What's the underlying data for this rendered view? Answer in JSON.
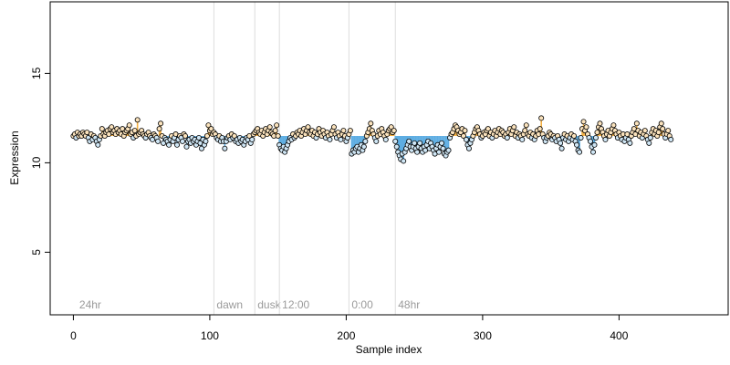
{
  "chart_data": {
    "type": "scatter",
    "title": "",
    "xlabel": "Sample index",
    "ylabel": "Expression",
    "xlim": [
      -17,
      480
    ],
    "ylim": [
      1.5,
      19
    ],
    "xticks": [
      0,
      100,
      200,
      300,
      400
    ],
    "yticks": [
      5,
      10,
      15
    ],
    "grid": false,
    "baseline": 11.5,
    "colors": {
      "above": "#f5b041",
      "below": "#5dade2",
      "point_edge": "#000000",
      "region_line": "#dcdcdc",
      "region_text": "#9a9a9a"
    },
    "regions": [
      {
        "x": 103,
        "label": "dawn"
      },
      {
        "x": 133,
        "label": "dusk"
      },
      {
        "x": 151,
        "label": "12:00"
      },
      {
        "x": 202,
        "label": "0:00"
      },
      {
        "x": 236,
        "label": "48hr"
      }
    ],
    "start_label": {
      "x": 3,
      "label": "24hr"
    },
    "series": [
      {
        "values": [
          11.5,
          11.6,
          11.4,
          11.7,
          11.5,
          11.6,
          11.5,
          11.7,
          11.6,
          11.5,
          11.7,
          11.4,
          11.2,
          11.6,
          11.3,
          11.5,
          11.4,
          11.2,
          11.0,
          11.3,
          11.5,
          11.9,
          11.6,
          11.5,
          11.7,
          11.8,
          11.6,
          11.9,
          12.0,
          11.7,
          11.8,
          11.6,
          11.9,
          11.7,
          11.8,
          11.6,
          11.9,
          11.5,
          11.7,
          11.8,
          11.9,
          12.1,
          11.6,
          11.7,
          11.4,
          11.8,
          11.5,
          12.4,
          11.6,
          11.7,
          11.8,
          11.6,
          11.5,
          11.4,
          11.6,
          11.7,
          11.5,
          11.4,
          11.3,
          11.6,
          11.5,
          11.4,
          11.2,
          11.9,
          12.2,
          11.5,
          11.1,
          11.4,
          11.3,
          11.2,
          11.0,
          11.3,
          11.5,
          11.2,
          11.4,
          11.6,
          11.0,
          11.3,
          11.5,
          11.4,
          11.2,
          11.6,
          11.5,
          10.9,
          11.2,
          11.3,
          11.1,
          11.4,
          11.2,
          11.3,
          11.0,
          11.2,
          11.4,
          11.1,
          10.8,
          11.3,
          11.0,
          11.2,
          11.5,
          12.1,
          11.8,
          11.9,
          11.6,
          11.7,
          11.6,
          11.4,
          11.3,
          11.5,
          11.2,
          11.4,
          11.2,
          10.8,
          11.2,
          11.4,
          11.5,
          11.3,
          11.6,
          11.4,
          11.5,
          11.2,
          11.3,
          11.1,
          11.4,
          11.2,
          11.3,
          11.0,
          11.2,
          11.4,
          11.3,
          11.5,
          11.1,
          11.3,
          11.6,
          11.7,
          11.8,
          11.9,
          11.7,
          11.6,
          11.8,
          11.5,
          11.7,
          11.9,
          11.6,
          11.8,
          12.0,
          11.7,
          11.6,
          11.5,
          11.8,
          12.1,
          11.5,
          11.0,
          10.8,
          10.7,
          10.9,
          10.6,
          10.8,
          11.0,
          11.2,
          11.4,
          11.3,
          11.6,
          11.4,
          11.5,
          11.7,
          11.6,
          11.8,
          11.5,
          11.7,
          11.9,
          11.6,
          11.8,
          12.0,
          11.7,
          11.6,
          11.8,
          11.5,
          11.7,
          11.4,
          11.6,
          11.9,
          11.7,
          11.5,
          11.8,
          11.6,
          11.4,
          11.7,
          11.5,
          11.3,
          11.6,
          11.8,
          12.0,
          11.6,
          11.4,
          11.7,
          11.5,
          11.3,
          11.6,
          11.8,
          11.5,
          11.2,
          11.4,
          11.6,
          11.8,
          10.5,
          10.7,
          10.6,
          10.8,
          10.9,
          10.6,
          10.8,
          11.0,
          10.7,
          10.9,
          11.2,
          11.5,
          11.7,
          11.9,
          12.2,
          11.8,
          11.6,
          11.4,
          11.2,
          11.5,
          11.8,
          11.6,
          11.9,
          11.7,
          11.5,
          11.3,
          11.6,
          11.8,
          11.9,
          12.0,
          11.7,
          11.8,
          11.2,
          10.9,
          10.6,
          10.4,
          10.2,
          10.5,
          10.1,
          10.6,
          10.8,
          11.0,
          11.2,
          10.9,
          10.7,
          10.9,
          11.1,
          10.8,
          10.6,
          10.9,
          11.1,
          10.8,
          10.6,
          10.9,
          10.7,
          11.0,
          11.2,
          10.8,
          11.1,
          10.9,
          10.7,
          10.5,
          10.8,
          11.0,
          10.6,
          10.9,
          11.1,
          10.8,
          10.5,
          10.4,
          10.6,
          10.7,
          11.4,
          11.6,
          11.7,
          11.9,
          12.1,
          12.0,
          11.8,
          11.6,
          11.7,
          11.9,
          11.5,
          11.8,
          11.3,
          11.0,
          10.8,
          11.1,
          11.3,
          11.5,
          11.7,
          11.9,
          12.0,
          11.8,
          11.6,
          11.4,
          11.5,
          11.7,
          11.6,
          11.8,
          11.9,
          11.5,
          11.7,
          11.4,
          11.6,
          11.8,
          11.5,
          11.7,
          11.9,
          11.6,
          11.8,
          11.7,
          11.5,
          11.6,
          11.4,
          11.7,
          11.9,
          11.6,
          11.8,
          12.0,
          11.5,
          11.7,
          11.4,
          11.6,
          11.5,
          11.3,
          11.6,
          11.8,
          12.1,
          11.6,
          11.5,
          11.7,
          11.4,
          11.6,
          11.3,
          11.5,
          11.8,
          11.6,
          11.9,
          12.5,
          11.6,
          11.4,
          11.2,
          11.4,
          11.5,
          11.7,
          11.6,
          11.3,
          11.5,
          11.4,
          11.2,
          11.5,
          11.3,
          11.1,
          10.8,
          11.4,
          11.6,
          11.3,
          11.5,
          11.2,
          11.4,
          11.6,
          11.3,
          11.5,
          11.2,
          11.0,
          10.7,
          10.6,
          11.4,
          11.9,
          12.3,
          11.8,
          12.0,
          11.6,
          11.4,
          11.2,
          10.9,
          10.6,
          11.0,
          11.4,
          11.7,
          12.0,
          12.2,
          11.9,
          11.7,
          11.5,
          11.3,
          11.6,
          11.8,
          11.5,
          11.7,
          11.9,
          12.1,
          11.8,
          11.6,
          11.4,
          11.7,
          11.5,
          11.3,
          11.6,
          11.2,
          11.4,
          11.6,
          11.3,
          11.1,
          11.5,
          11.7,
          11.9,
          11.6,
          12.2,
          11.8,
          11.5,
          11.7,
          11.4,
          11.6,
          11.8,
          11.5,
          11.3,
          11.1,
          11.4,
          11.7,
          11.9,
          11.6,
          11.8,
          11.5,
          11.7,
          12.0,
          12.2,
          11.9,
          11.6,
          11.4,
          11.6,
          11.8,
          11.5,
          11.3
        ]
      }
    ]
  }
}
